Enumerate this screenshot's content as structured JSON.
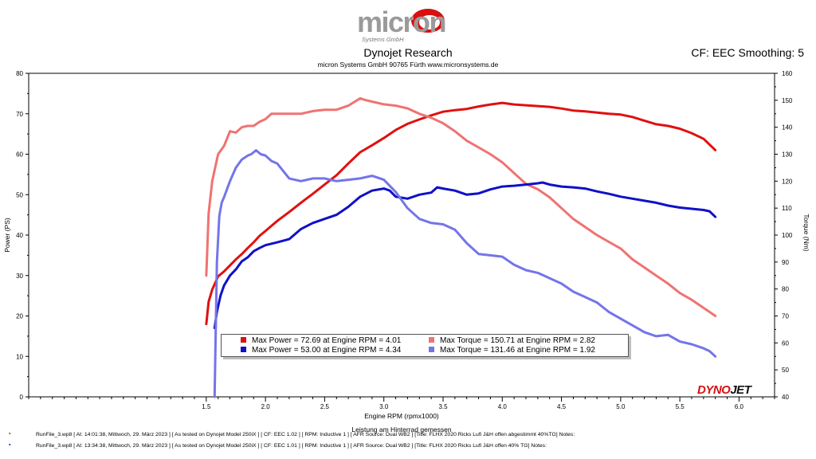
{
  "header": {
    "logo_text": "micron",
    "logo_subtext": "Systems GmbH",
    "title": "Dynojet Research",
    "subtitle": "micron Systems GmbH  90765 Fürth www.micronsystems.de",
    "cf_label": "CF: EEC Smoothing: 5"
  },
  "colors": {
    "power_run1": "#e01010",
    "torque_run1": "#f07272",
    "power_run2": "#1010c8",
    "torque_run2": "#7474ea"
  },
  "chart_data": {
    "type": "line",
    "xlabel": "Engine RPM (rpmx1000)",
    "xlabel2": "Leistung am Hinterrad gemessen",
    "ylabel_left": "Power (PS)",
    "ylabel_right": "Torque (Nm)",
    "xlim": [
      0.0,
      6.3
    ],
    "ylim_left": [
      0,
      80
    ],
    "ylim_right": [
      40,
      160
    ],
    "x_ticks": [
      "1.5",
      "2.0",
      "2.5",
      "3.0",
      "3.5",
      "4.0",
      "4.5",
      "5.0",
      "5.5",
      "6.0"
    ],
    "y_ticks_left": [
      "0",
      "10",
      "20",
      "30",
      "40",
      "50",
      "60",
      "70",
      "80"
    ],
    "y_ticks_right": [
      "40",
      "50",
      "60",
      "70",
      "80",
      "90",
      "100",
      "110",
      "120",
      "130",
      "140",
      "150",
      "160"
    ],
    "grid": false,
    "legend_position": "bottom-center",
    "series": [
      {
        "name": "Max Power = 72.69 at Engine RPM = 4.01",
        "axis": "left",
        "color": "#e01010",
        "x": [
          1.5,
          1.52,
          1.55,
          1.6,
          1.65,
          1.7,
          1.75,
          1.8,
          1.85,
          1.9,
          1.95,
          2.0,
          2.1,
          2.2,
          2.3,
          2.4,
          2.5,
          2.6,
          2.7,
          2.8,
          2.9,
          3.0,
          3.1,
          3.2,
          3.3,
          3.4,
          3.5,
          3.6,
          3.7,
          3.8,
          3.9,
          4.0,
          4.1,
          4.2,
          4.3,
          4.4,
          4.5,
          4.6,
          4.7,
          4.8,
          4.9,
          5.0,
          5.1,
          5.2,
          5.3,
          5.4,
          5.5,
          5.6,
          5.7,
          5.75,
          5.8
        ],
        "y": [
          18.0,
          23.5,
          26.5,
          29.8,
          31.0,
          32.5,
          34.0,
          35.3,
          36.8,
          38.2,
          39.8,
          41.0,
          43.5,
          45.7,
          48.0,
          50.2,
          52.5,
          54.8,
          57.7,
          60.5,
          62.2,
          64.0,
          66.0,
          67.5,
          68.6,
          69.6,
          70.5,
          70.9,
          71.2,
          71.8,
          72.3,
          72.69,
          72.3,
          72.1,
          71.9,
          71.7,
          71.3,
          70.8,
          70.6,
          70.3,
          70.0,
          69.8,
          69.2,
          68.3,
          67.4,
          67.0,
          66.3,
          65.2,
          63.8,
          62.4,
          61.0
        ]
      },
      {
        "name": "Max Torque = 150.71 at Engine RPM = 2.82",
        "axis": "right",
        "color": "#f07272",
        "x": [
          1.5,
          1.52,
          1.55,
          1.6,
          1.65,
          1.7,
          1.75,
          1.8,
          1.85,
          1.9,
          1.95,
          2.0,
          2.05,
          2.1,
          2.2,
          2.3,
          2.4,
          2.5,
          2.6,
          2.7,
          2.8,
          2.85,
          2.9,
          3.0,
          3.1,
          3.2,
          3.3,
          3.4,
          3.5,
          3.6,
          3.7,
          3.8,
          3.9,
          4.0,
          4.1,
          4.2,
          4.3,
          4.4,
          4.5,
          4.6,
          4.7,
          4.8,
          4.9,
          5.0,
          5.1,
          5.2,
          5.3,
          5.4,
          5.5,
          5.6,
          5.7,
          5.75,
          5.8
        ],
        "y": [
          85.0,
          108.0,
          120.0,
          130.0,
          133.0,
          138.5,
          138.0,
          140.0,
          140.5,
          140.5,
          142.0,
          143.0,
          145.0,
          145.0,
          145.0,
          145.0,
          146.0,
          146.5,
          146.5,
          148.0,
          150.71,
          150.0,
          149.5,
          148.5,
          148.0,
          147.0,
          145.0,
          143.5,
          141.5,
          138.5,
          135.0,
          132.5,
          130.0,
          127.0,
          123.0,
          119.0,
          117.0,
          114.0,
          110.0,
          106.0,
          103.0,
          100.0,
          97.5,
          95.0,
          91.0,
          88.0,
          85.0,
          82.0,
          78.5,
          76.0,
          73.0,
          71.5,
          70.0
        ]
      },
      {
        "name": "Max Power = 53.00 at Engine RPM = 4.34",
        "axis": "left",
        "color": "#1010c8",
        "x": [
          1.57,
          1.59,
          1.62,
          1.65,
          1.7,
          1.75,
          1.8,
          1.85,
          1.9,
          1.95,
          2.0,
          2.1,
          2.2,
          2.3,
          2.4,
          2.5,
          2.6,
          2.7,
          2.8,
          2.9,
          3.0,
          3.05,
          3.1,
          3.2,
          3.3,
          3.4,
          3.45,
          3.5,
          3.6,
          3.7,
          3.8,
          3.9,
          4.0,
          4.1,
          4.2,
          4.3,
          4.34,
          4.4,
          4.5,
          4.6,
          4.7,
          4.8,
          4.9,
          5.0,
          5.1,
          5.2,
          5.3,
          5.4,
          5.5,
          5.6,
          5.7,
          5.75,
          5.8
        ],
        "y": [
          17.0,
          21.0,
          25.0,
          27.5,
          30.0,
          31.5,
          33.5,
          34.5,
          36.0,
          36.8,
          37.5,
          38.2,
          39.0,
          41.5,
          43.0,
          44.0,
          45.0,
          47.0,
          49.5,
          51.0,
          51.5,
          51.0,
          49.5,
          49.0,
          50.0,
          50.5,
          51.8,
          51.5,
          51.0,
          50.0,
          50.3,
          51.3,
          52.0,
          52.2,
          52.5,
          52.8,
          53.0,
          52.5,
          52.0,
          51.8,
          51.5,
          50.8,
          50.2,
          49.5,
          49.0,
          48.5,
          48.0,
          47.3,
          46.8,
          46.5,
          46.2,
          45.9,
          44.5
        ]
      },
      {
        "name": "Max Torque = 131.46 at Engine RPM = 1.92",
        "axis": "right",
        "color": "#7474ea",
        "x": [
          1.57,
          1.59,
          1.61,
          1.63,
          1.65,
          1.7,
          1.75,
          1.8,
          1.85,
          1.88,
          1.92,
          1.96,
          2.0,
          2.05,
          2.1,
          2.2,
          2.3,
          2.4,
          2.5,
          2.6,
          2.7,
          2.8,
          2.9,
          3.0,
          3.1,
          3.2,
          3.3,
          3.4,
          3.5,
          3.6,
          3.7,
          3.8,
          3.9,
          4.0,
          4.1,
          4.2,
          4.3,
          4.4,
          4.5,
          4.6,
          4.7,
          4.8,
          4.9,
          5.0,
          5.1,
          5.2,
          5.3,
          5.4,
          5.5,
          5.6,
          5.7,
          5.75,
          5.8
        ],
        "y": [
          40.0,
          90.0,
          107.0,
          112.0,
          114.0,
          120.0,
          125.0,
          128.0,
          129.5,
          130.0,
          131.46,
          130.0,
          129.5,
          127.5,
          126.5,
          121.0,
          120.0,
          121.0,
          121.0,
          120.0,
          120.5,
          121.0,
          122.0,
          120.5,
          116.0,
          110.0,
          106.0,
          104.5,
          104.0,
          102.0,
          97.0,
          93.0,
          92.5,
          92.0,
          89.0,
          87.0,
          86.0,
          84.0,
          82.0,
          79.0,
          77.0,
          75.0,
          71.5,
          69.0,
          66.5,
          64.0,
          62.5,
          63.0,
          60.5,
          59.5,
          58.0,
          57.0,
          55.0
        ]
      }
    ],
    "annotations": [
      "DYNOJET"
    ]
  },
  "legend": {
    "items": [
      "Max Power = 72.69 at Engine RPM = 4.01",
      "Max Torque = 150.71 at Engine RPM = 2.82",
      "Max Power = 53.00 at Engine RPM = 4.34",
      "Max Torque = 131.46 at Engine RPM = 1.92"
    ]
  },
  "brand": {
    "part1": "DYNO",
    "part2": "JET"
  },
  "runs": [
    {
      "marker": "▪",
      "text": "RunFile_3.wp8  [  At:  14:01:38,  Mittwoch,  29.  März  2023  ]  [  As  tested  on  Dynojet  Model  250iX  ]  [  CF:  EEC  1.02  ]  [  RPM:  Inductive  1  ]  [  AFR  Source:  Dual  WB2  ]  [Title:  FLHX  2020  Ricks  Lufi  J&H  offen  abgestimmt  40%TG]   Notes:"
    },
    {
      "marker": "▪",
      "text": "RunFile_3.wp8  [  At:  13:34:38,  Mittwoch,  29.  März  2023  ]  [  As  tested  on  Dynojet  Model  250iX  ]  [  CF:  EEC  1.01  ]  [  RPM:  Inductive  1  ]  [  AFR  Source:  Dual  WB2  ]  [Title:  FLHX  2020  Ricks  Lufi  J&H  offen  40%  TG]   Notes:"
    }
  ]
}
